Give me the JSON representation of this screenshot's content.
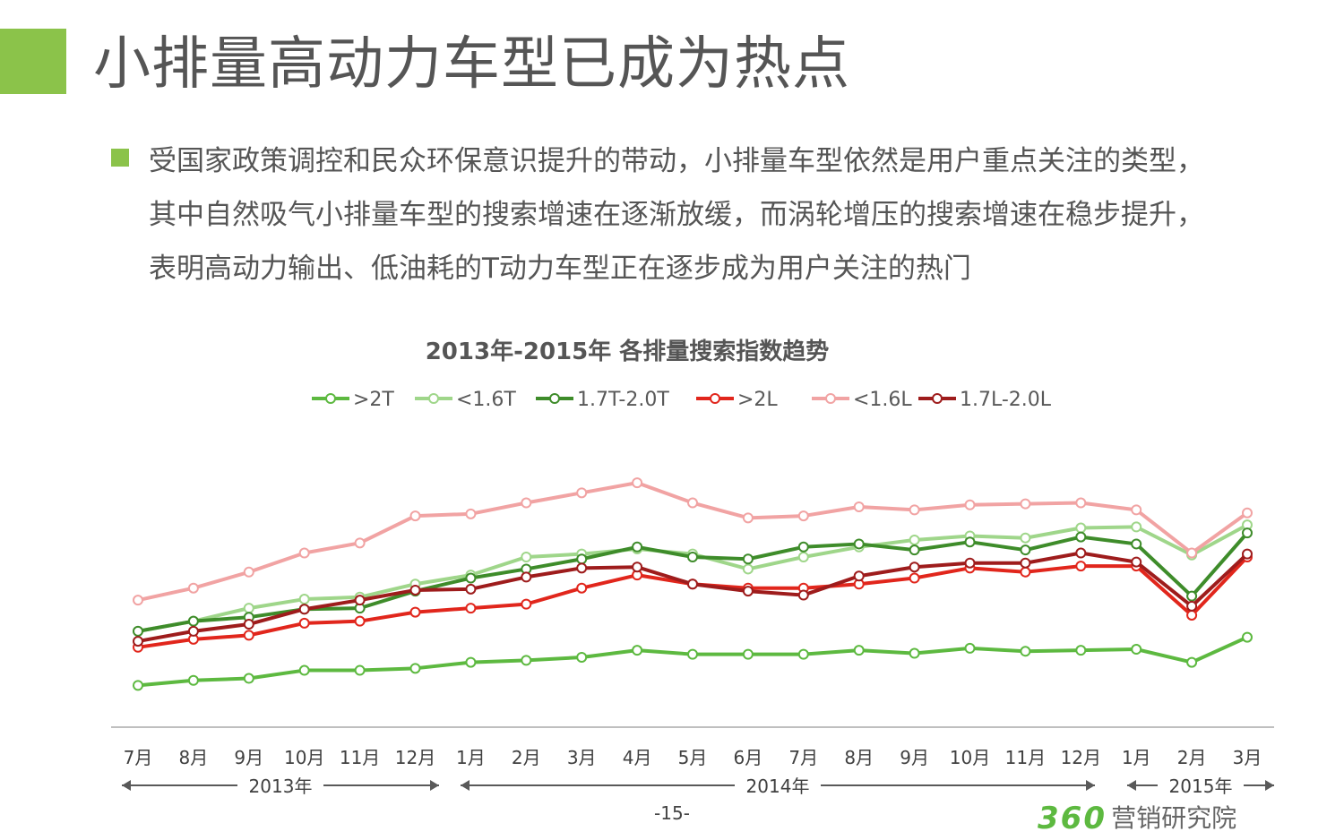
{
  "header": {
    "title": "小排量高动力车型已成为热点",
    "accent_color": "#8BC34A"
  },
  "body": {
    "lines": [
      "受国家政策调控和民众环保意识提升的带动，小排量车型依然是用户重点关注的类型，",
      "其中自然吸气小排量车型的搜索增速在逐渐放缓，而涡轮增压的搜索增速在稳步提升，",
      "表明高动力输出、低油耗的T动力车型正在逐步成为用户关注的热门"
    ]
  },
  "chart_data": {
    "type": "line",
    "title": "2013年-2015年  各排量搜索指数趋势",
    "categories": [
      "7月",
      "8月",
      "9月",
      "10月",
      "11月",
      "12月",
      "1月",
      "2月",
      "3月",
      "4月",
      "5月",
      "6月",
      "7月",
      "8月",
      "9月",
      "10月",
      "11月",
      "12月",
      "1月",
      "2月",
      "3月"
    ],
    "year_groups": [
      {
        "label": "2013年",
        "start": 0,
        "end": 5
      },
      {
        "label": "2014年",
        "start": 6,
        "end": 17
      },
      {
        "label": "2015年",
        "start": 18,
        "end": 20
      }
    ],
    "ylim": [
      0,
      100
    ],
    "grid": false,
    "legend_position": "top",
    "series": [
      {
        "name": ">2T",
        "color": "#5DB940",
        "values": [
          11,
          13.5,
          14.5,
          18.5,
          18.5,
          19.5,
          22.5,
          23.5,
          25,
          28.5,
          26.5,
          26.5,
          26.5,
          28.5,
          27,
          29.5,
          28,
          28.5,
          29,
          22.5,
          35
        ]
      },
      {
        "name": "<1.6T",
        "color": "#9FD68A",
        "values": [
          38,
          43,
          49.5,
          54,
          55,
          61.5,
          66,
          75,
          76.5,
          79,
          76.5,
          69,
          75,
          80,
          83.5,
          85.5,
          84.5,
          89.5,
          90,
          76,
          91
        ]
      },
      {
        "name": "1.7T-2.0T",
        "color": "#3E8C2A",
        "values": [
          38,
          43,
          45,
          49,
          49.5,
          58,
          64.5,
          69,
          74,
          80,
          75,
          74,
          80,
          81.5,
          78.5,
          82.5,
          78.5,
          85,
          81.5,
          55.5,
          87
        ]
      },
      {
        "name": ">2L",
        "color": "#E1261C",
        "values": [
          30,
          34,
          36,
          42,
          43,
          47.5,
          49.5,
          51.5,
          59.5,
          66,
          61.5,
          59.5,
          59.5,
          61.5,
          64.5,
          69.5,
          67.5,
          70.5,
          70.5,
          46,
          75
        ]
      },
      {
        "name": "<1.6L",
        "color": "#F1A3A3",
        "values": [
          53.5,
          59.5,
          67.5,
          77,
          82,
          95.5,
          96.5,
          102,
          107,
          112,
          102,
          94.5,
          95.5,
          100,
          98.5,
          101,
          101.5,
          102,
          98.5,
          77,
          97
        ]
      },
      {
        "name": "1.7L-2.0L",
        "color": "#9E1C1C",
        "values": [
          33,
          38,
          41.5,
          49,
          53.5,
          58.5,
          59,
          65,
          69.5,
          70,
          61.5,
          58,
          56,
          65.5,
          70,
          72,
          72,
          77,
          72.5,
          50.5,
          76.5
        ]
      }
    ]
  },
  "footer": {
    "page_number": "-15-",
    "logo_number": "360",
    "logo_text": "营销研究院",
    "logo_color": "#5DB940"
  }
}
